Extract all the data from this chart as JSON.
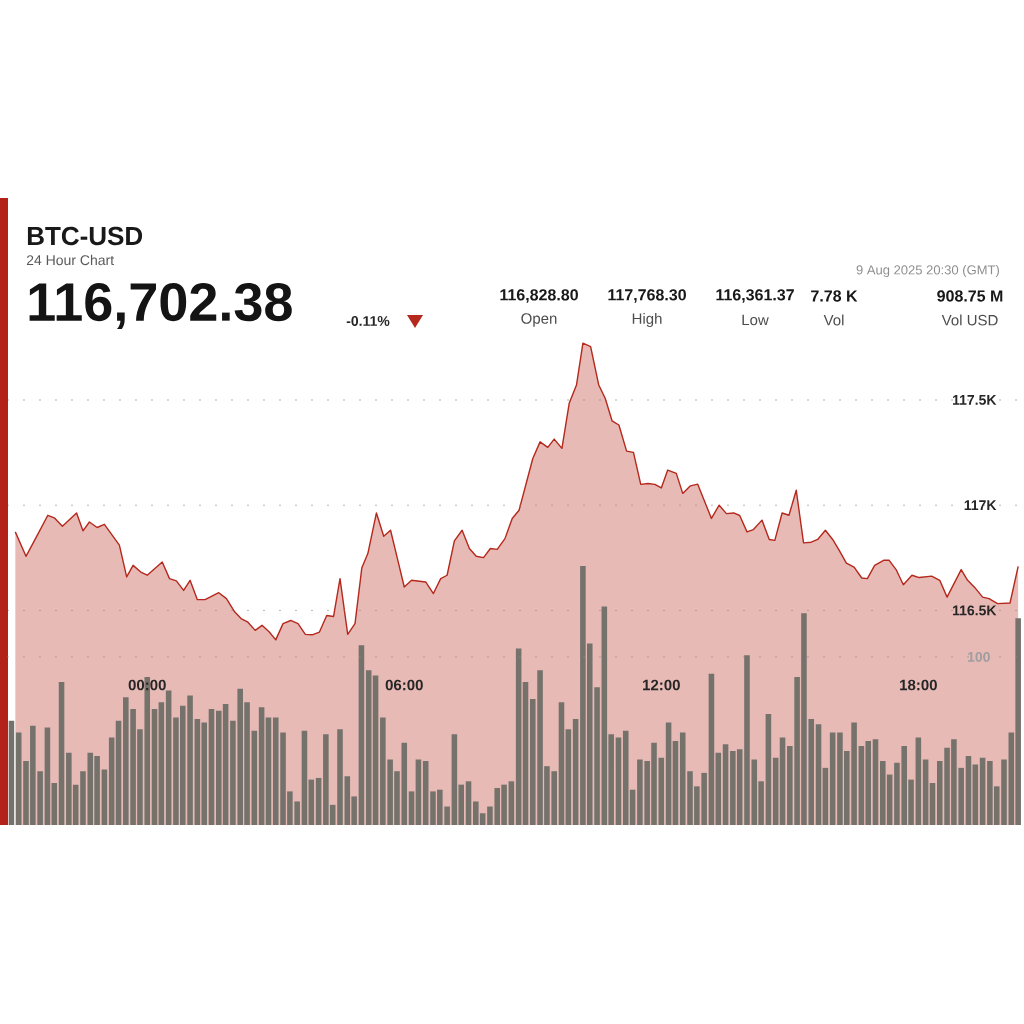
{
  "chart_data": {
    "type": "area",
    "title": "BTC-USD",
    "subtitle": "24 Hour Chart",
    "annotations": [
      "116,702.38",
      "-0.11%",
      "116,828.80",
      "Open",
      "117,768.30",
      "High",
      "116,361.37",
      "Low",
      "7.78 K",
      "Vol",
      "908.75 M",
      "Vol USD",
      "9 Aug 2025 20:30 (GMT)"
    ],
    "xlim": [
      -3.25,
      20.42
    ],
    "xticks": [
      {
        "value": 0,
        "label": "00:00"
      },
      {
        "value": 6,
        "label": "06:00"
      },
      {
        "value": 12,
        "label": "12:00"
      },
      {
        "value": 18,
        "label": "18:00"
      }
    ],
    "ylim": [
      115480,
      118460
    ],
    "yticks": [
      {
        "value": 116500,
        "label": "116.5K"
      },
      {
        "value": 117000,
        "label": "117K"
      },
      {
        "value": 117500,
        "label": "117.5K"
      }
    ],
    "y2lim": [
      0,
      373
    ],
    "y2ticks": [
      100
    ],
    "grid": "y",
    "series": [
      {
        "color": "#b5281c",
        "x": [
          -3.08,
          -2.83,
          -2.54,
          -2.32,
          -2.17,
          -1.98,
          -1.65,
          -1.5,
          -1.35,
          -1.17,
          -1,
          -0.65,
          -0.48,
          -0.33,
          -0.15,
          0,
          0.35,
          0.52,
          0.68,
          0.85,
          1,
          1.17,
          1.35,
          1.67,
          1.85,
          2.04,
          2.19,
          2.35,
          2.52,
          2.68,
          2.85,
          3,
          3.17,
          3.35,
          3.52,
          3.69,
          3.85,
          4.02,
          4.19,
          4.35,
          4.5,
          4.68,
          4.85,
          5.01,
          5.15,
          5.35,
          5.52,
          5.68,
          5.85,
          6,
          6.17,
          6.5,
          6.68,
          6.85,
          7,
          7.17,
          7.35,
          7.52,
          7.68,
          7.85,
          8.01,
          8.17,
          8.35,
          8.52,
          8.68,
          9,
          9.17,
          9.35,
          9.5,
          9.68,
          9.85,
          10.02,
          10.17,
          10.35,
          10.54,
          10.69,
          10.85,
          11.01,
          11.19,
          11.35,
          11.52,
          11.69,
          11.85,
          12,
          12.15,
          12.35,
          12.5,
          12.68,
          12.85,
          13.17,
          13.35,
          13.52,
          13.69,
          13.83,
          14,
          14.15,
          14.35,
          14.52,
          14.65,
          14.82,
          14.98,
          15.15,
          15.32,
          15.5,
          15.65,
          15.83,
          16,
          16.15,
          16.32,
          16.5,
          16.68,
          16.81,
          16.98,
          17.19,
          17.32,
          17.48,
          17.65,
          17.85,
          18.02,
          18.31,
          18.5,
          18.67,
          19,
          19.15,
          19.32,
          19.5,
          19.65,
          19.85,
          20.14,
          20.33
        ],
        "values": [
          116873,
          116757,
          116867,
          116952,
          116940,
          116900,
          116963,
          116878,
          116920,
          116894,
          116909,
          116810,
          116659,
          116714,
          116682,
          116667,
          116730,
          116651,
          116640,
          116595,
          116643,
          116551,
          116551,
          116584,
          116556,
          116493,
          116461,
          116444,
          116405,
          116429,
          116397,
          116360,
          116437,
          116452,
          116437,
          116386,
          116384,
          116397,
          116476,
          116471,
          116651,
          116386,
          116437,
          116703,
          116770,
          116963,
          116852,
          116881,
          116738,
          116611,
          116643,
          116635,
          116580,
          116651,
          116667,
          116830,
          116881,
          116794,
          116757,
          116751,
          116794,
          116790,
          116841,
          116937,
          116976,
          117222,
          117301,
          117275,
          117314,
          117270,
          117484,
          117571,
          117770,
          117754,
          117571,
          117508,
          117401,
          117381,
          117257,
          117251,
          117099,
          117103,
          117099,
          117082,
          117167,
          117151,
          117056,
          117092,
          117100,
          116937,
          117000,
          116960,
          116963,
          116951,
          116873,
          116884,
          116929,
          116837,
          116833,
          116963,
          116952,
          117071,
          116821,
          116824,
          116837,
          116881,
          116837,
          116786,
          116725,
          116706,
          116654,
          116651,
          116714,
          116738,
          116738,
          116694,
          116622,
          116667,
          116656,
          116663,
          116643,
          116563,
          116694,
          116643,
          116608,
          116563,
          116556,
          116532,
          116535,
          116709
        ]
      },
      {
        "type": "bar",
        "axis": "y2",
        "color": "#75726c",
        "x": [
          -3.17,
          -3,
          -2.83,
          -2.67,
          -2.5,
          -2.33,
          -2.17,
          -2,
          -1.83,
          -1.67,
          -1.5,
          -1.33,
          -1.17,
          -1,
          -0.83,
          -0.67,
          -0.5,
          -0.33,
          -0.17,
          0,
          0.17,
          0.33,
          0.5,
          0.67,
          0.83,
          1,
          1.17,
          1.33,
          1.5,
          1.67,
          1.83,
          2,
          2.17,
          2.33,
          2.5,
          2.67,
          2.83,
          3,
          3.17,
          3.33,
          3.5,
          3.67,
          3.83,
          4,
          4.17,
          4.33,
          4.5,
          4.67,
          4.83,
          5,
          5.17,
          5.33,
          5.5,
          5.67,
          5.83,
          6,
          6.17,
          6.33,
          6.5,
          6.67,
          6.83,
          7,
          7.17,
          7.33,
          7.5,
          7.67,
          7.83,
          8,
          8.17,
          8.33,
          8.5,
          8.67,
          8.83,
          9,
          9.17,
          9.33,
          9.5,
          9.67,
          9.83,
          10,
          10.17,
          10.33,
          10.5,
          10.67,
          10.83,
          11,
          11.17,
          11.33,
          11.5,
          11.67,
          11.83,
          12,
          12.17,
          12.33,
          12.5,
          12.67,
          12.83,
          13,
          13.17,
          13.33,
          13.5,
          13.67,
          13.83,
          14,
          14.17,
          14.33,
          14.5,
          14.67,
          14.83,
          15,
          15.17,
          15.33,
          15.5,
          15.67,
          15.83,
          16,
          16.17,
          16.33,
          16.5,
          16.67,
          16.83,
          17,
          17.17,
          17.33,
          17.5,
          17.67,
          17.83,
          18,
          18.17,
          18.33,
          18.5,
          18.67,
          18.83,
          19,
          19.17,
          19.33,
          19.5,
          19.67,
          19.83,
          20,
          20.17,
          20.33
        ],
        "values": [
          62,
          55,
          38,
          59,
          32,
          58,
          25,
          85,
          43,
          24,
          32,
          43,
          41,
          33,
          52,
          62,
          76,
          69,
          57,
          88,
          69,
          73,
          80,
          64,
          71,
          77,
          63,
          61,
          69,
          68,
          72,
          62,
          81,
          73,
          56,
          70,
          64,
          64,
          55,
          20,
          14,
          56,
          27,
          28,
          54,
          12,
          57,
          29,
          17,
          107,
          92,
          89,
          64,
          39,
          32,
          49,
          20,
          39,
          38,
          20,
          21,
          11,
          54,
          24,
          26,
          14,
          7,
          11,
          22,
          24,
          26,
          105,
          85,
          75,
          92,
          35,
          32,
          73,
          57,
          63,
          154,
          108,
          82,
          130,
          54,
          52,
          56,
          21,
          39,
          38,
          49,
          40,
          61,
          50,
          55,
          32,
          23,
          31,
          90,
          43,
          48,
          44,
          45,
          101,
          39,
          26,
          66,
          40,
          52,
          47,
          88,
          126,
          63,
          60,
          34,
          55,
          55,
          44,
          61,
          47,
          50,
          51,
          38,
          30,
          37,
          47,
          27,
          52,
          39,
          25,
          38,
          46,
          51,
          34,
          41,
          36,
          40,
          38,
          23,
          39,
          55,
          123
        ]
      }
    ]
  }
}
